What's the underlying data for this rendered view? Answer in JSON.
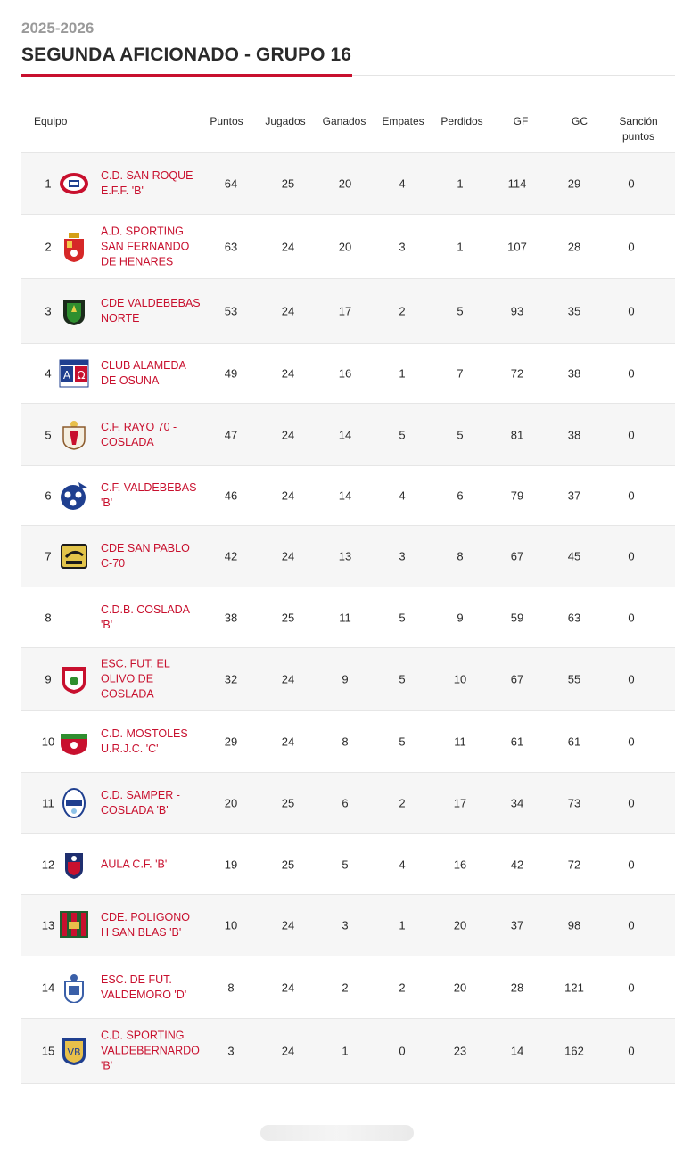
{
  "header": {
    "season": "2025-2026",
    "title": "SEGUNDA AFICIONADO - GRUPO 16"
  },
  "table": {
    "columns": {
      "team": "Equipo",
      "points": "Puntos",
      "played": "Jugados",
      "won": "Ganados",
      "drawn": "Empates",
      "lost": "Perdidos",
      "gf": "GF",
      "gc": "GC",
      "sanction": "Sanción puntos"
    },
    "rows": [
      {
        "pos": "1",
        "team": "C.D. SAN ROQUE E.F.F. 'B'",
        "points": "64",
        "played": "25",
        "won": "20",
        "drawn": "4",
        "lost": "1",
        "gf": "114",
        "gc": "29",
        "sanction": "0",
        "crest": "san-roque-crest"
      },
      {
        "pos": "2",
        "team": "A.D. SPORTING SAN FERNANDO DE HENARES",
        "points": "63",
        "played": "24",
        "won": "20",
        "drawn": "3",
        "lost": "1",
        "gf": "107",
        "gc": "28",
        "sanction": "0",
        "crest": "sporting-san-fernando-crest"
      },
      {
        "pos": "3",
        "team": "CDE VALDEBEBAS NORTE",
        "points": "53",
        "played": "24",
        "won": "17",
        "drawn": "2",
        "lost": "5",
        "gf": "93",
        "gc": "35",
        "sanction": "0",
        "crest": "valdebebas-norte-crest"
      },
      {
        "pos": "4",
        "team": "CLUB ALAMEDA DE OSUNA",
        "points": "49",
        "played": "24",
        "won": "16",
        "drawn": "1",
        "lost": "7",
        "gf": "72",
        "gc": "38",
        "sanction": "0",
        "crest": "alameda-osuna-crest"
      },
      {
        "pos": "5",
        "team": "C.F. RAYO 70 - COSLADA",
        "points": "47",
        "played": "24",
        "won": "14",
        "drawn": "5",
        "lost": "5",
        "gf": "81",
        "gc": "38",
        "sanction": "0",
        "crest": "rayo-70-crest"
      },
      {
        "pos": "6",
        "team": "C.F. VALDEBEBAS 'B'",
        "points": "46",
        "played": "24",
        "won": "14",
        "drawn": "4",
        "lost": "6",
        "gf": "79",
        "gc": "37",
        "sanction": "0",
        "crest": "cf-valdebebas-crest"
      },
      {
        "pos": "7",
        "team": "CDE SAN PABLO C-70",
        "points": "42",
        "played": "24",
        "won": "13",
        "drawn": "3",
        "lost": "8",
        "gf": "67",
        "gc": "45",
        "sanction": "0",
        "crest": "san-pablo-crest"
      },
      {
        "pos": "8",
        "team": "C.D.B. COSLADA 'B'",
        "points": "38",
        "played": "25",
        "won": "11",
        "drawn": "5",
        "lost": "9",
        "gf": "59",
        "gc": "63",
        "sanction": "0",
        "crest": ""
      },
      {
        "pos": "9",
        "team": "ESC. FUT. EL OLIVO DE COSLADA",
        "points": "32",
        "played": "24",
        "won": "9",
        "drawn": "5",
        "lost": "10",
        "gf": "67",
        "gc": "55",
        "sanction": "0",
        "crest": "el-olivo-crest"
      },
      {
        "pos": "10",
        "team": "C.D. MOSTOLES U.R.J.C. 'C'",
        "points": "29",
        "played": "24",
        "won": "8",
        "drawn": "5",
        "lost": "11",
        "gf": "61",
        "gc": "61",
        "sanction": "0",
        "crest": "mostoles-crest"
      },
      {
        "pos": "11",
        "team": "C.D. SAMPER - COSLADA 'B'",
        "points": "20",
        "played": "25",
        "won": "6",
        "drawn": "2",
        "lost": "17",
        "gf": "34",
        "gc": "73",
        "sanction": "0",
        "crest": "samper-crest"
      },
      {
        "pos": "12",
        "team": "AULA C.F. 'B'",
        "points": "19",
        "played": "25",
        "won": "5",
        "drawn": "4",
        "lost": "16",
        "gf": "42",
        "gc": "72",
        "sanction": "0",
        "crest": "aula-crest"
      },
      {
        "pos": "13",
        "team": "CDE. POLIGONO H SAN BLAS 'B'",
        "points": "10",
        "played": "24",
        "won": "3",
        "drawn": "1",
        "lost": "20",
        "gf": "37",
        "gc": "98",
        "sanction": "0",
        "crest": "poligono-h-crest"
      },
      {
        "pos": "14",
        "team": "ESC. DE FUT. VALDEMORO 'D'",
        "points": "8",
        "played": "24",
        "won": "2",
        "drawn": "2",
        "lost": "20",
        "gf": "28",
        "gc": "121",
        "sanction": "0",
        "crest": "valdemoro-crest"
      },
      {
        "pos": "15",
        "team": "C.D. SPORTING VALDEBERNARDO 'B'",
        "points": "3",
        "played": "24",
        "won": "1",
        "drawn": "0",
        "lost": "23",
        "gf": "14",
        "gc": "162",
        "sanction": "0",
        "crest": "valdebernardo-crest"
      }
    ]
  },
  "colors": {
    "accent": "#c8102e",
    "row_alt": "#f6f6f6",
    "muted": "#9a9a9a"
  }
}
